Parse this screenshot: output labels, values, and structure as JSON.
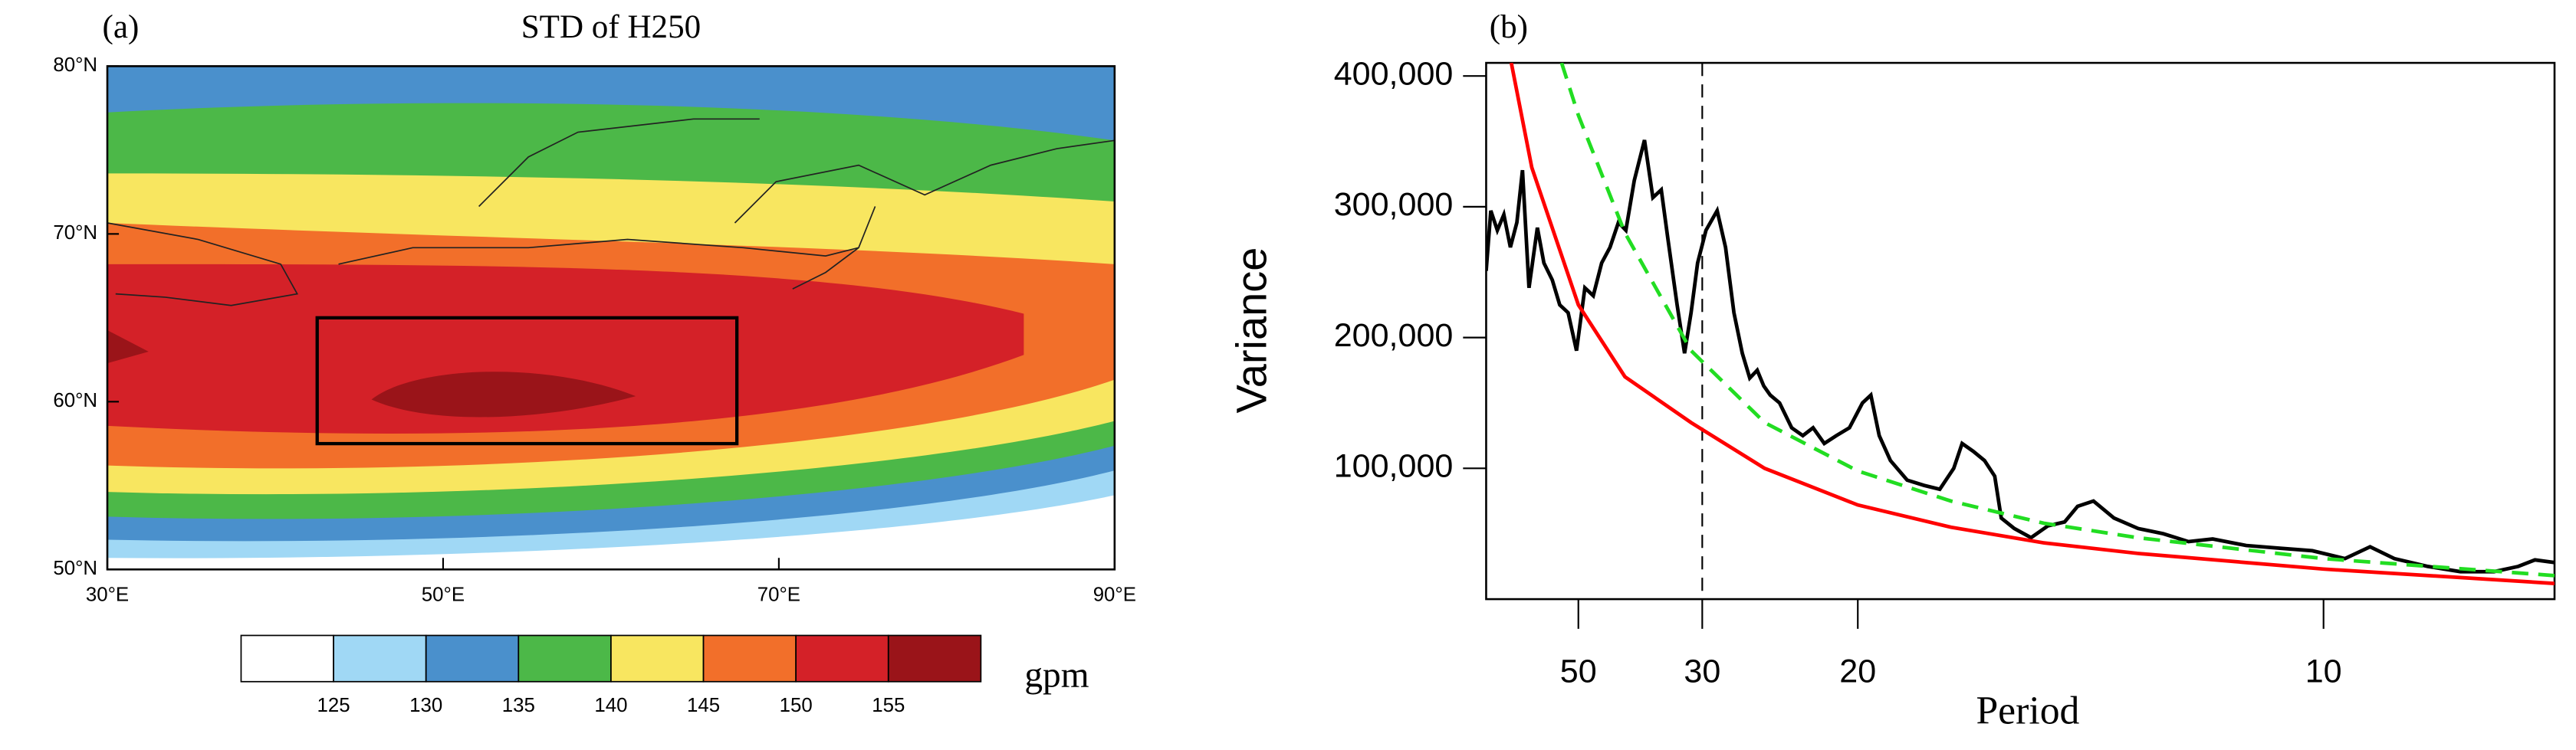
{
  "chart_data": [
    {
      "type": "map",
      "label": "(a)",
      "title": "STD of H250",
      "xlim": [
        30,
        90
      ],
      "ylim": [
        50,
        80
      ],
      "xticks": [
        {
          "value": 30,
          "label": "30°E"
        },
        {
          "value": 50,
          "label": "50°E"
        },
        {
          "value": 70,
          "label": "70°E"
        },
        {
          "value": 90,
          "label": "90°E"
        }
      ],
      "yticks": [
        {
          "value": 50,
          "label": "50°N"
        },
        {
          "value": 60,
          "label": "60°N"
        },
        {
          "value": 70,
          "label": "70°N"
        },
        {
          "value": 80,
          "label": "80°N"
        }
      ],
      "box": {
        "lon": [
          42.5,
          67.5
        ],
        "lat": [
          57.5,
          65
        ]
      },
      "colorbar": {
        "levels": [
          125,
          130,
          135,
          140,
          145,
          150,
          155
        ],
        "colors": [
          "#ffffff",
          "#a0d8f5",
          "#4a90cc",
          "#4cb848",
          "#f8e660",
          "#f26f2a",
          "#d42128",
          "#9a1419"
        ],
        "units": "gpm"
      }
    },
    {
      "type": "line",
      "label": "(b)",
      "xlabel": "Period",
      "ylabel": "Variance",
      "xlim": [
        0.0101,
        0.1248
      ],
      "ylim": [
        0,
        410000
      ],
      "xticks": [
        {
          "value": 0.02,
          "label": "50"
        },
        {
          "value": 0.0333,
          "label": "30"
        },
        {
          "value": 0.05,
          "label": "20"
        },
        {
          "value": 0.1,
          "label": "10"
        }
      ],
      "yticks": [
        {
          "value": 100000,
          "label": "100,000"
        },
        {
          "value": 200000,
          "label": "200,000"
        },
        {
          "value": 300000,
          "label": "300,000"
        },
        {
          "value": 400000,
          "label": "400,000"
        }
      ],
      "vline": 0.0333,
      "series": [
        {
          "color": "#000000",
          "dash": false,
          "x": [
            0.0101,
            0.0106,
            0.0113,
            0.012,
            0.0127,
            0.0134,
            0.014,
            0.0147,
            0.0156,
            0.0163,
            0.0172,
            0.018,
            0.0189,
            0.0198,
            0.0207,
            0.0216,
            0.0225,
            0.0234,
            0.0243,
            0.0251,
            0.026,
            0.0271,
            0.028,
            0.0289,
            0.0296,
            0.0306,
            0.0314,
            0.0321,
            0.0328,
            0.0337,
            0.0349,
            0.0358,
            0.0367,
            0.0376,
            0.0384,
            0.0392,
            0.0399,
            0.0406,
            0.0416,
            0.0429,
            0.0441,
            0.0452,
            0.0464,
            0.0477,
            0.0491,
            0.0505,
            0.0514,
            0.0523,
            0.0535,
            0.0553,
            0.0571,
            0.0588,
            0.0603,
            0.0612,
            0.0624,
            0.0636,
            0.0647,
            0.0654,
            0.0668,
            0.0686,
            0.0704,
            0.0722,
            0.0736,
            0.0753,
            0.0775,
            0.0801,
            0.0828,
            0.0855,
            0.0881,
            0.0917,
            0.0952,
            0.0988,
            0.1023,
            0.105,
            0.1076,
            0.1112,
            0.1147,
            0.1183,
            0.1209,
            0.1227,
            0.1248
          ],
          "values": [
            251000,
            297000,
            282000,
            294000,
            269000,
            288000,
            328000,
            238000,
            284000,
            257000,
            244000,
            225000,
            219000,
            190000,
            238000,
            232000,
            257000,
            269000,
            288000,
            282000,
            320000,
            351000,
            307000,
            313000,
            276000,
            225000,
            188000,
            219000,
            257000,
            282000,
            297000,
            269000,
            219000,
            188000,
            169000,
            175000,
            163000,
            156000,
            150000,
            131000,
            125000,
            131000,
            119000,
            125000,
            131000,
            150000,
            156000,
            125000,
            106000,
            91000,
            87000,
            84000,
            100000,
            119000,
            113000,
            106000,
            94000,
            62000,
            54000,
            47000,
            56000,
            59000,
            71000,
            75000,
            62000,
            54000,
            50000,
            44000,
            46000,
            41000,
            39000,
            37000,
            31000,
            40000,
            31000,
            25000,
            21000,
            21000,
            25000,
            30000,
            28000
          ]
        },
        {
          "color": "#ff0000",
          "dash": false,
          "x": [
            0.0128,
            0.015,
            0.02,
            0.025,
            0.0321,
            0.04,
            0.05,
            0.06,
            0.07,
            0.08,
            0.1,
            0.1248
          ],
          "values": [
            410000,
            330000,
            225000,
            170000,
            135000,
            100000,
            72000,
            55000,
            43000,
            35000,
            23000,
            12000
          ]
        },
        {
          "color": "#22dd22",
          "dash": true,
          "x": [
            0.0182,
            0.02,
            0.025,
            0.0321,
            0.04,
            0.05,
            0.06,
            0.07,
            0.08,
            0.1,
            0.1248
          ],
          "values": [
            410000,
            370000,
            280000,
            190000,
            135000,
            98000,
            75000,
            58000,
            47000,
            31000,
            18000
          ]
        }
      ]
    }
  ]
}
